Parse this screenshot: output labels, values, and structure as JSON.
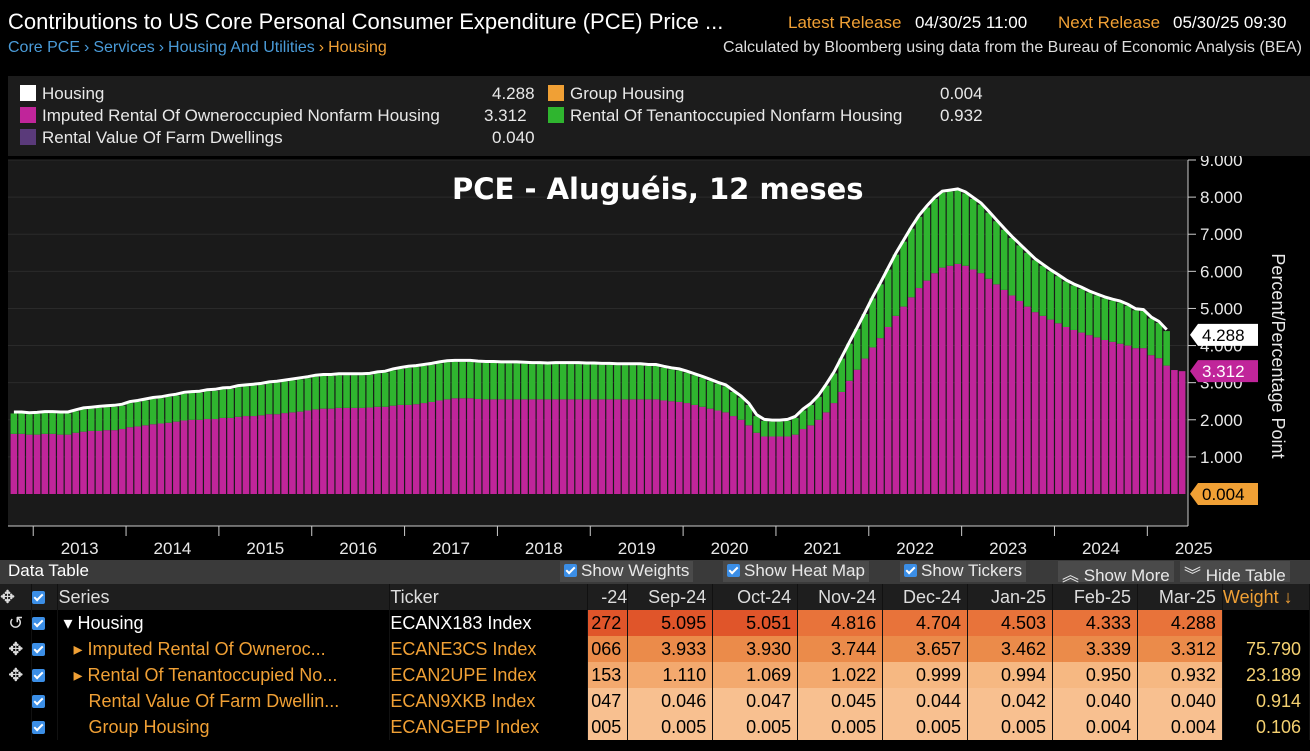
{
  "header": {
    "title": "Contributions to US Core Personal Consumer Expenditure (PCE) Price ...",
    "latest_label": "Latest Release",
    "latest_value": "04/30/25 11:00",
    "next_label": "Next Release",
    "next_value": "05/30/25 09:30",
    "breadcrumb": [
      "Core PCE",
      "Services",
      "Housing And Utilities",
      "Housing"
    ],
    "calc_note": "Calculated by Bloomberg using data from the Bureau of Economic Analysis (BEA)"
  },
  "legend": {
    "items": [
      {
        "label": "Housing",
        "value": "4.288",
        "color": "#ffffff"
      },
      {
        "label": "Imputed Rental Of Owneroccupied Nonfarm Housing",
        "value": "3.312",
        "color": "#c0259a"
      },
      {
        "label": "Rental Value Of Farm Dwellings",
        "value": "0.040",
        "color": "#5a3a7a"
      },
      {
        "label": "Group Housing",
        "value": "0.004",
        "color": "#f0a035"
      },
      {
        "label": "Rental Of Tenantoccupied Nonfarm Housing",
        "value": "0.932",
        "color": "#2fb52f"
      }
    ]
  },
  "chart_data": {
    "type": "bar",
    "title": "PCE - Aluguéis, 12 meses",
    "ylabel": "Percent/Percentage Point",
    "ylim": [
      0,
      9
    ],
    "yticks": [
      "1.000",
      "2.000",
      "3.000",
      "4.000",
      "5.000",
      "6.000",
      "7.000",
      "8.000",
      "9.000"
    ],
    "xticks": [
      "2013",
      "2014",
      "2015",
      "2016",
      "2017",
      "2018",
      "2019",
      "2020",
      "2021",
      "2022",
      "2023",
      "2024",
      "2025"
    ],
    "x_start": "2012-10",
    "last_labels": {
      "housing": "4.288",
      "imputed": "3.312",
      "group": "0.004"
    },
    "series": [
      {
        "name": "Imputed Rental Of Owneroccupied Nonfarm Housing",
        "color": "#c0259a",
        "values": [
          1.62,
          1.62,
          1.6,
          1.6,
          1.62,
          1.62,
          1.6,
          1.6,
          1.65,
          1.68,
          1.7,
          1.7,
          1.72,
          1.72,
          1.75,
          1.8,
          1.82,
          1.85,
          1.88,
          1.9,
          1.92,
          1.95,
          1.98,
          2.0,
          2.0,
          2.02,
          2.02,
          2.05,
          2.05,
          2.08,
          2.1,
          2.1,
          2.12,
          2.15,
          2.15,
          2.18,
          2.2,
          2.22,
          2.25,
          2.28,
          2.3,
          2.3,
          2.32,
          2.32,
          2.32,
          2.32,
          2.33,
          2.35,
          2.35,
          2.38,
          2.4,
          2.4,
          2.42,
          2.45,
          2.48,
          2.52,
          2.55,
          2.58,
          2.58,
          2.58,
          2.56,
          2.55,
          2.55,
          2.55,
          2.55,
          2.55,
          2.55,
          2.55,
          2.55,
          2.55,
          2.55,
          2.55,
          2.55,
          2.55,
          2.55,
          2.55,
          2.55,
          2.55,
          2.55,
          2.55,
          2.55,
          2.55,
          2.55,
          2.55,
          2.52,
          2.5,
          2.48,
          2.45,
          2.4,
          2.35,
          2.3,
          2.25,
          2.2,
          2.1,
          2.0,
          1.85,
          1.65,
          1.55,
          1.55,
          1.55,
          1.55,
          1.6,
          1.75,
          1.85,
          2.0,
          2.2,
          2.45,
          2.75,
          3.05,
          3.35,
          3.65,
          3.95,
          4.2,
          4.5,
          4.8,
          5.05,
          5.3,
          5.55,
          5.75,
          5.95,
          6.1,
          6.15,
          6.2,
          6.15,
          6.05,
          5.95,
          5.8,
          5.65,
          5.5,
          5.35,
          5.2,
          5.05,
          4.9,
          4.8,
          4.7,
          4.6,
          4.5,
          4.42,
          4.35,
          4.28,
          4.22,
          4.15,
          4.1,
          4.05,
          4.0,
          3.93,
          3.93,
          3.74,
          3.66,
          3.46,
          3.34,
          3.31
        ]
      },
      {
        "name": "Rental Of Tenantoccupied Nonfarm Housing",
        "color": "#2fb52f",
        "values": [
          0.55,
          0.55,
          0.55,
          0.56,
          0.56,
          0.56,
          0.57,
          0.57,
          0.58,
          0.6,
          0.6,
          0.62,
          0.62,
          0.63,
          0.63,
          0.65,
          0.66,
          0.67,
          0.68,
          0.68,
          0.7,
          0.7,
          0.72,
          0.72,
          0.73,
          0.75,
          0.76,
          0.77,
          0.78,
          0.8,
          0.8,
          0.82,
          0.82,
          0.83,
          0.85,
          0.85,
          0.86,
          0.87,
          0.87,
          0.88,
          0.88,
          0.88,
          0.88,
          0.88,
          0.88,
          0.88,
          0.88,
          0.9,
          0.92,
          0.95,
          0.97,
          1.0,
          1.0,
          1.0,
          1.0,
          1.0,
          1.0,
          0.98,
          0.98,
          0.98,
          0.98,
          0.98,
          0.98,
          0.97,
          0.97,
          0.97,
          0.96,
          0.95,
          0.95,
          0.94,
          0.95,
          0.95,
          0.95,
          0.95,
          0.94,
          0.94,
          0.93,
          0.93,
          0.92,
          0.92,
          0.92,
          0.92,
          0.9,
          0.9,
          0.88,
          0.86,
          0.85,
          0.82,
          0.8,
          0.78,
          0.75,
          0.72,
          0.7,
          0.65,
          0.6,
          0.55,
          0.45,
          0.42,
          0.4,
          0.4,
          0.42,
          0.45,
          0.5,
          0.55,
          0.62,
          0.72,
          0.8,
          0.9,
          1.0,
          1.1,
          1.2,
          1.32,
          1.45,
          1.55,
          1.65,
          1.75,
          1.85,
          1.92,
          1.97,
          2.0,
          2.02,
          2.0,
          1.98,
          1.95,
          1.9,
          1.85,
          1.78,
          1.7,
          1.62,
          1.55,
          1.5,
          1.45,
          1.4,
          1.35,
          1.3,
          1.27,
          1.23,
          1.2,
          1.18,
          1.15,
          1.13,
          1.12,
          1.11,
          1.11,
          1.07,
          1.02,
          1.0,
          0.99,
          0.95,
          0.93
        ]
      },
      {
        "name": "Rental Value Of Farm Dwellings",
        "color": "#5a3a7a",
        "values": []
      },
      {
        "name": "Group Housing",
        "color": "#f0a035",
        "values": []
      }
    ]
  },
  "data_table": {
    "title": "Data Table",
    "buttons": [
      "Show Weights",
      "Show Heat Map",
      "Show Tickers",
      "Show More",
      "Hide Table"
    ],
    "columns": {
      "series": "Series",
      "ticker": "Ticker",
      "weight": "Weight"
    },
    "periods": [
      "-24",
      "Sep-24",
      "Oct-24",
      "Nov-24",
      "Dec-24",
      "Jan-25",
      "Feb-25",
      "Mar-25"
    ],
    "rows": [
      {
        "series": "Housing",
        "ticker": "ECANX183 Index",
        "values": [
          "272",
          "5.095",
          "5.051",
          "4.816",
          "4.704",
          "4.503",
          "4.333",
          "4.288"
        ],
        "weight": ""
      },
      {
        "series": "Imputed Rental Of Owneroc...",
        "ticker": "ECANE3CS Index",
        "values": [
          "066",
          "3.933",
          "3.930",
          "3.744",
          "3.657",
          "3.462",
          "3.339",
          "3.312"
        ],
        "weight": "75.790"
      },
      {
        "series": "Rental Of Tenantoccupied No...",
        "ticker": "ECAN2UPE Index",
        "values": [
          "153",
          "1.110",
          "1.069",
          "1.022",
          "0.999",
          "0.994",
          "0.950",
          "0.932"
        ],
        "weight": "23.189"
      },
      {
        "series": "Rental Value Of Farm Dwellin...",
        "ticker": "ECAN9XKB Index",
        "values": [
          "047",
          "0.046",
          "0.047",
          "0.045",
          "0.044",
          "0.042",
          "0.040",
          "0.040"
        ],
        "weight": "0.914"
      },
      {
        "series": "Group Housing",
        "ticker": "ECANGEPP Index",
        "values": [
          "005",
          "0.005",
          "0.005",
          "0.005",
          "0.005",
          "0.005",
          "0.004",
          "0.004"
        ],
        "weight": "0.106"
      }
    ]
  }
}
